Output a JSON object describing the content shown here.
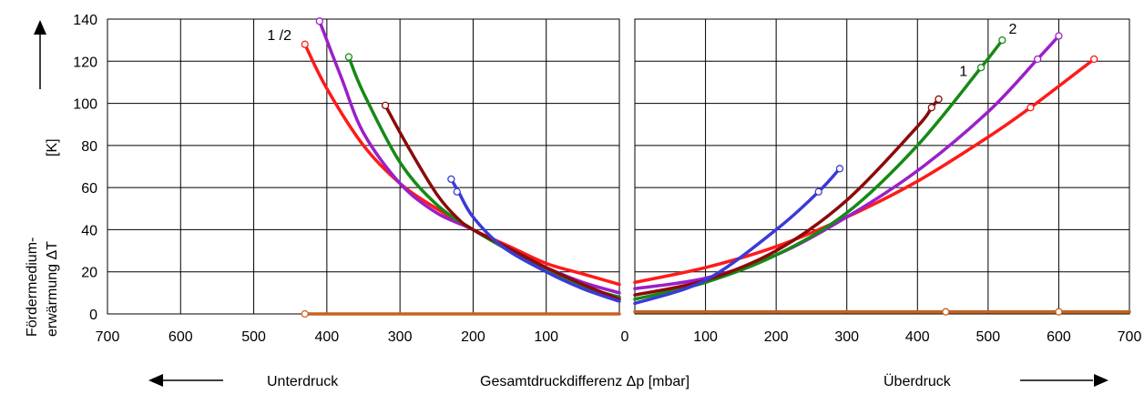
{
  "chart_data": {
    "type": "line",
    "ylabel": "Fördermedium-\nerwärmung  ΔT",
    "yunit": "[K]",
    "xlabel": "Gesamtdruckdifferenz Δp  [mbar]",
    "left_caption": "Unterdruck",
    "right_caption": "Überdruck",
    "ylim": [
      0,
      140
    ],
    "yticks": [
      0,
      20,
      40,
      60,
      80,
      100,
      120,
      140
    ],
    "grid": true,
    "panels": [
      {
        "name": "Unterdruck",
        "xlim": [
          700,
          0
        ],
        "xticks": [
          "700",
          "600",
          "500",
          "400",
          "300",
          "200",
          "100"
        ],
        "series": [
          {
            "color": "#ff1a1a",
            "x": [
              430,
              400,
              350,
              300,
              250,
              200,
              150,
              100,
              50,
              0
            ],
            "y": [
              128,
              107,
              80,
              62,
              50,
              40,
              32,
              24,
              19,
              14
            ],
            "end_markers": [
              [
                430,
                128
              ]
            ]
          },
          {
            "color": "#9b1fc9",
            "x": [
              410,
              380,
              350,
              300,
              250,
              200,
              150,
              100,
              50,
              0
            ],
            "y": [
              139,
              112,
              86,
              62,
              48,
              40,
              30,
              22,
              15,
              10
            ],
            "end_markers": [
              [
                410,
                139
              ]
            ]
          },
          {
            "color": "#158a15",
            "x": [
              370,
              350,
              300,
              250,
              200,
              150,
              100,
              50,
              0
            ],
            "y": [
              122,
              105,
              72,
              52,
              40,
              30,
              21,
              13,
              8
            ],
            "end_markers": [
              [
                370,
                122
              ]
            ]
          },
          {
            "color": "#8b0a0a",
            "x": [
              320,
              290,
              250,
              220,
              200,
              150,
              100,
              50,
              0
            ],
            "y": [
              99,
              80,
              57,
              45,
              40,
              31,
              22,
              14,
              7
            ],
            "end_markers": [
              [
                320,
                99
              ]
            ]
          },
          {
            "color": "#3a3ad8",
            "x": [
              230,
              220,
              200,
              160,
              100,
              50,
              0
            ],
            "y": [
              64,
              58,
              46,
              32,
              20,
              12,
              6
            ],
            "end_markers": [
              [
                230,
                64
              ],
              [
                222,
                58
              ]
            ]
          },
          {
            "color": "#c8621e",
            "x": [
              430,
              0
            ],
            "y": [
              0,
              0
            ],
            "end_markers": [
              [
                430,
                0
              ]
            ]
          }
        ],
        "annotations": [
          {
            "text": "1 /2",
            "x": 465,
            "y": 130
          }
        ]
      },
      {
        "name": "Überdruck",
        "xlim": [
          0,
          700
        ],
        "xticks": [
          "100",
          "200",
          "300",
          "400",
          "500",
          "600",
          "700"
        ],
        "series": [
          {
            "color": "#ff1a1a",
            "x": [
              0,
              100,
              200,
              300,
              400,
              500,
              560,
              650
            ],
            "y": [
              15,
              22,
              32,
              46,
              63,
              84,
              98,
              121
            ],
            "end_markers": [
              [
                560,
                98
              ],
              [
                650,
                121
              ]
            ]
          },
          {
            "color": "#9b1fc9",
            "x": [
              0,
              100,
              200,
              300,
              400,
              500,
              570,
              600
            ],
            "y": [
              12,
              17,
              28,
              46,
              68,
              96,
              121,
              132
            ],
            "end_markers": [
              [
                570,
                121
              ],
              [
                600,
                132
              ]
            ]
          },
          {
            "color": "#158a15",
            "x": [
              0,
              100,
              200,
              300,
              400,
              490,
              520
            ],
            "y": [
              7,
              15,
              28,
              48,
              80,
              117,
              130
            ],
            "end_markers": [
              [
                490,
                117
              ],
              [
                520,
                130
              ]
            ]
          },
          {
            "color": "#8b0a0a",
            "x": [
              0,
              100,
              200,
              300,
              400,
              420,
              430
            ],
            "y": [
              9,
              16,
              30,
              54,
              89,
              98,
              102
            ],
            "end_markers": [
              [
                420,
                98
              ],
              [
                430,
                102
              ]
            ]
          },
          {
            "color": "#3a3ad8",
            "x": [
              0,
              100,
              200,
              260,
              290
            ],
            "y": [
              5,
              16,
              40,
              58,
              69
            ],
            "end_markers": [
              [
                260,
                58
              ],
              [
                290,
                69
              ]
            ]
          },
          {
            "color": "#c8621e",
            "x": [
              0,
              700
            ],
            "y": [
              1,
              1
            ],
            "end_markers": [
              [
                440,
                1
              ],
              [
                600,
                1
              ]
            ]
          }
        ],
        "annotations": [
          {
            "text": "2",
            "x": 535,
            "y": 133
          },
          {
            "text": "1",
            "x": 465,
            "y": 113
          }
        ]
      }
    ],
    "center_tick": "0"
  }
}
